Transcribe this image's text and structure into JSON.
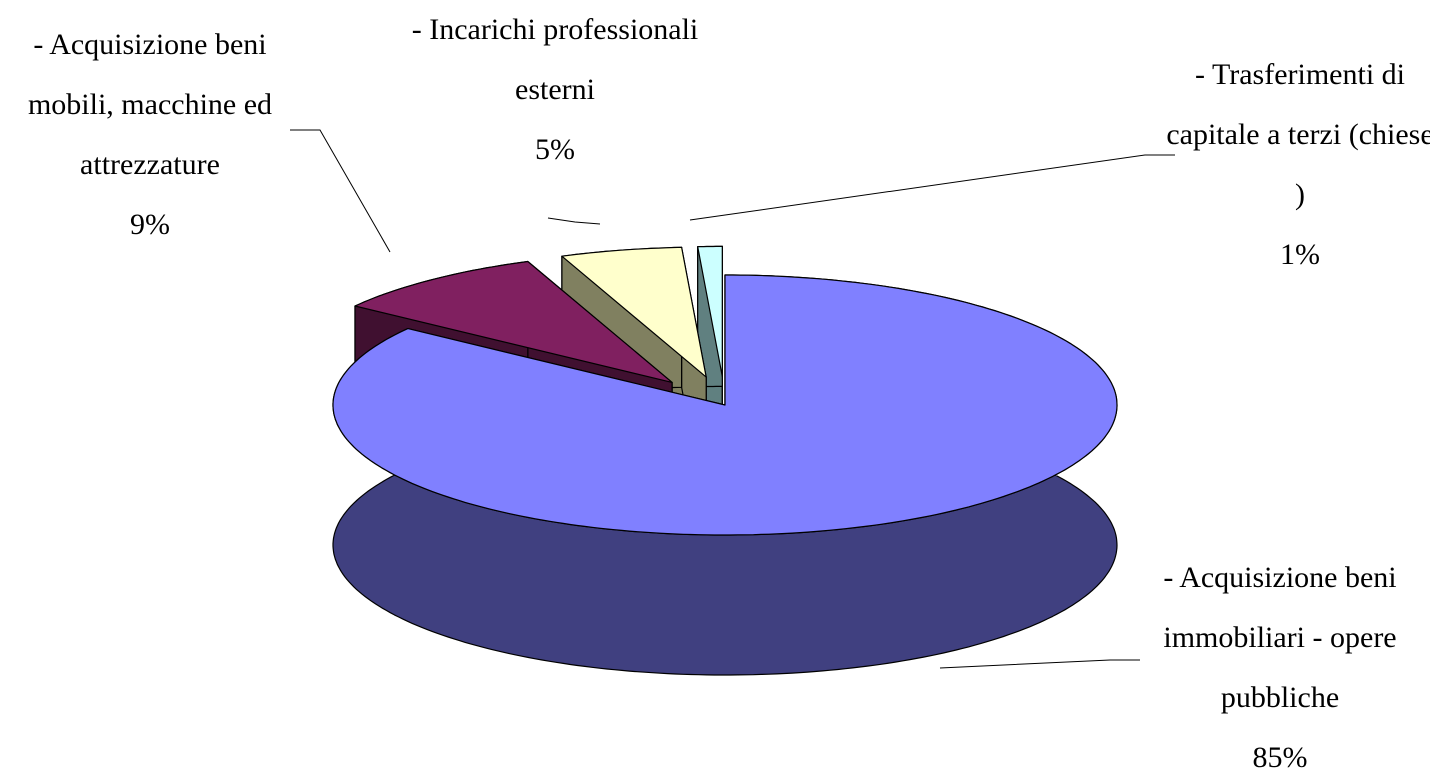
{
  "chart_data": {
    "type": "pie3d",
    "categories": [
      "- Acquisizione beni immobiliari  - opere pubbliche",
      "- Acquisizione beni mobili, macchine ed attrezzature",
      "- Incarichi professionali esterni",
      "- Trasferimenti di capitale a terzi (chiese )"
    ],
    "values": [
      85,
      9,
      5,
      1
    ],
    "value_labels": [
      "85%",
      "9%",
      "5%",
      "1%"
    ],
    "colors": [
      "#8080ff",
      "#802060",
      "#ffffcc",
      "#ccffff"
    ],
    "side_colors": [
      "#404080",
      "#401030",
      "#808060",
      "#608080"
    ]
  }
}
